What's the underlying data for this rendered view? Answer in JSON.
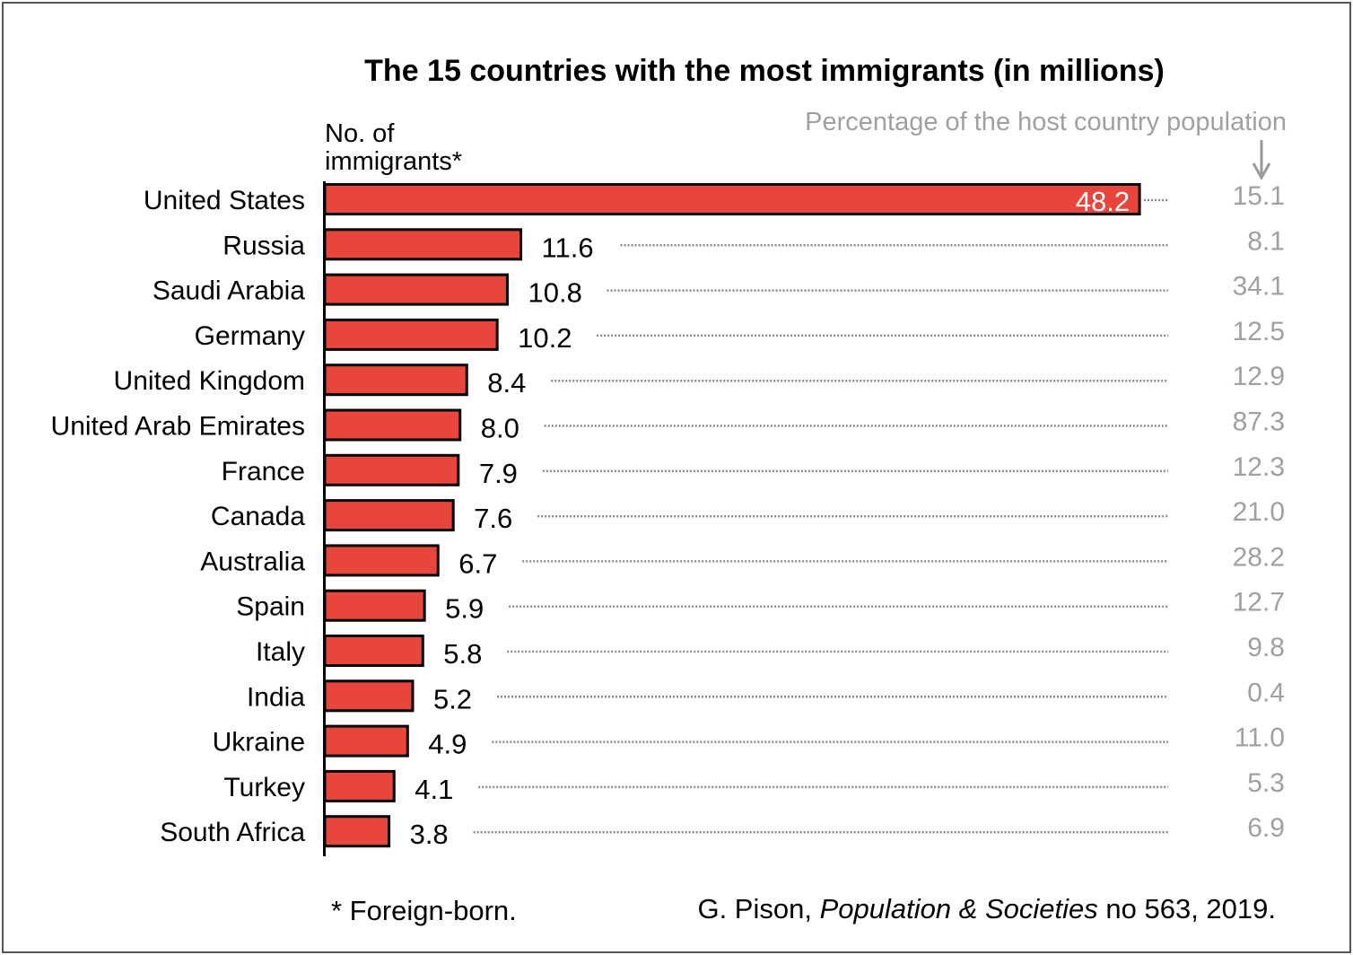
{
  "chart_data": {
    "type": "bar",
    "orientation": "horizontal",
    "title": "The 15 countries with the most immigrants (in millions)",
    "ylabel": "No. of immigrants*",
    "secondary_label": "Percentage of the host country population",
    "categories": [
      "United States",
      "Russia",
      "Saudi Arabia",
      "Germany",
      "United Kingdom",
      "United Arab Emirates",
      "France",
      "Canada",
      "Australia",
      "Spain",
      "Italy",
      "India",
      "Ukraine",
      "Turkey",
      "South Africa"
    ],
    "values": [
      48.2,
      11.6,
      10.8,
      10.2,
      8.4,
      8.0,
      7.9,
      7.6,
      6.7,
      5.9,
      5.8,
      5.2,
      4.9,
      4.1,
      3.8
    ],
    "value_labels": [
      "48.2",
      "11.6",
      "10.8",
      "10.2",
      "8.4",
      "8.0",
      "7.9",
      "7.6",
      "6.7",
      "5.9",
      "5.8",
      "5.2",
      "4.9",
      "4.1",
      "3.8"
    ],
    "percentages": [
      "15.1",
      "8.1",
      "34.1",
      "12.5",
      "12.9",
      "87.3",
      "12.3",
      "21.0",
      "28.2",
      "12.7",
      "9.8",
      "0.4",
      "11.0",
      "5.3",
      "6.9"
    ],
    "bar_color": "#e8453c",
    "grid": false
  },
  "footnote": "*  Foreign-born.",
  "source": {
    "author": "G. Pison, ",
    "publication": "Population & Societies",
    "rest": " no 563, 2019."
  }
}
